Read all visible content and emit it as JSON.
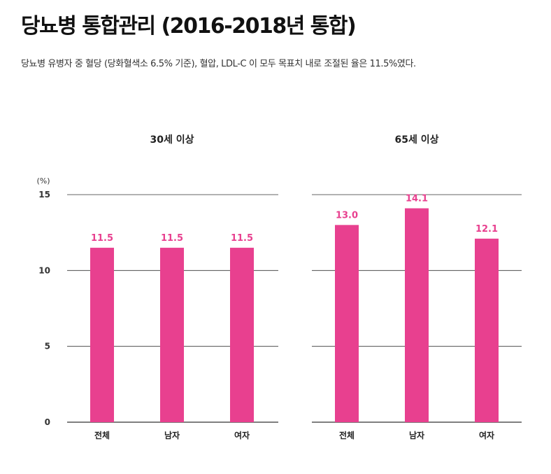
{
  "page": {
    "title": "당뇨병 통합관리 (2016-2018년 통합)",
    "subtitle": "당뇨병 유병자 중 혈당 (당화혈색소 6.5% 기준), 혈압, LDL-C 이 모두 목표치 내로 조절된 율은 11.5%였다."
  },
  "colors": {
    "bar": "#e8408f",
    "label": "#e8408f",
    "gridline": "#333333"
  },
  "chart_data": [
    {
      "type": "bar",
      "title": "30세 이상",
      "ylabel": "(%)",
      "ylim": [
        0,
        15
      ],
      "yticks": [
        "0",
        "5",
        "10",
        "15"
      ],
      "categories": [
        "전체",
        "남자",
        "여자"
      ],
      "values": [
        11.5,
        11.5,
        11.5
      ],
      "value_labels": [
        "11.5",
        "11.5",
        "11.5"
      ]
    },
    {
      "type": "bar",
      "title": "65세 이상",
      "ylim": [
        0,
        15
      ],
      "categories": [
        "전체",
        "남자",
        "여자"
      ],
      "values": [
        13.0,
        14.1,
        12.1
      ],
      "value_labels": [
        "13.0",
        "14.1",
        "12.1"
      ]
    }
  ]
}
